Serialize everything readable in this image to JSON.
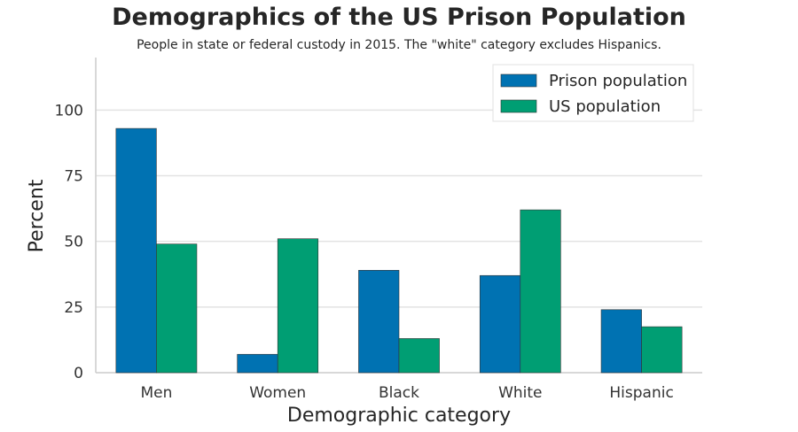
{
  "chart_data": {
    "type": "bar",
    "title": "Demographics of the US Prison Population",
    "subtitle": "People in state or federal custody in 2015. The \"white\" category excludes Hispanics.",
    "xlabel": "Demographic category",
    "ylabel": "Percent",
    "categories": [
      "Men",
      "Women",
      "Black",
      "White",
      "Hispanic"
    ],
    "series": [
      {
        "name": "Prison population",
        "values": [
          93,
          7,
          39,
          37,
          24
        ],
        "color": "#0072b2"
      },
      {
        "name": "US population",
        "values": [
          49,
          51,
          13,
          62,
          17.5
        ],
        "color": "#009e73"
      }
    ],
    "ylim": [
      0,
      120
    ],
    "yticks": [
      "0",
      "25",
      "50",
      "75",
      "100"
    ],
    "grid": true,
    "legend": "top-right"
  }
}
